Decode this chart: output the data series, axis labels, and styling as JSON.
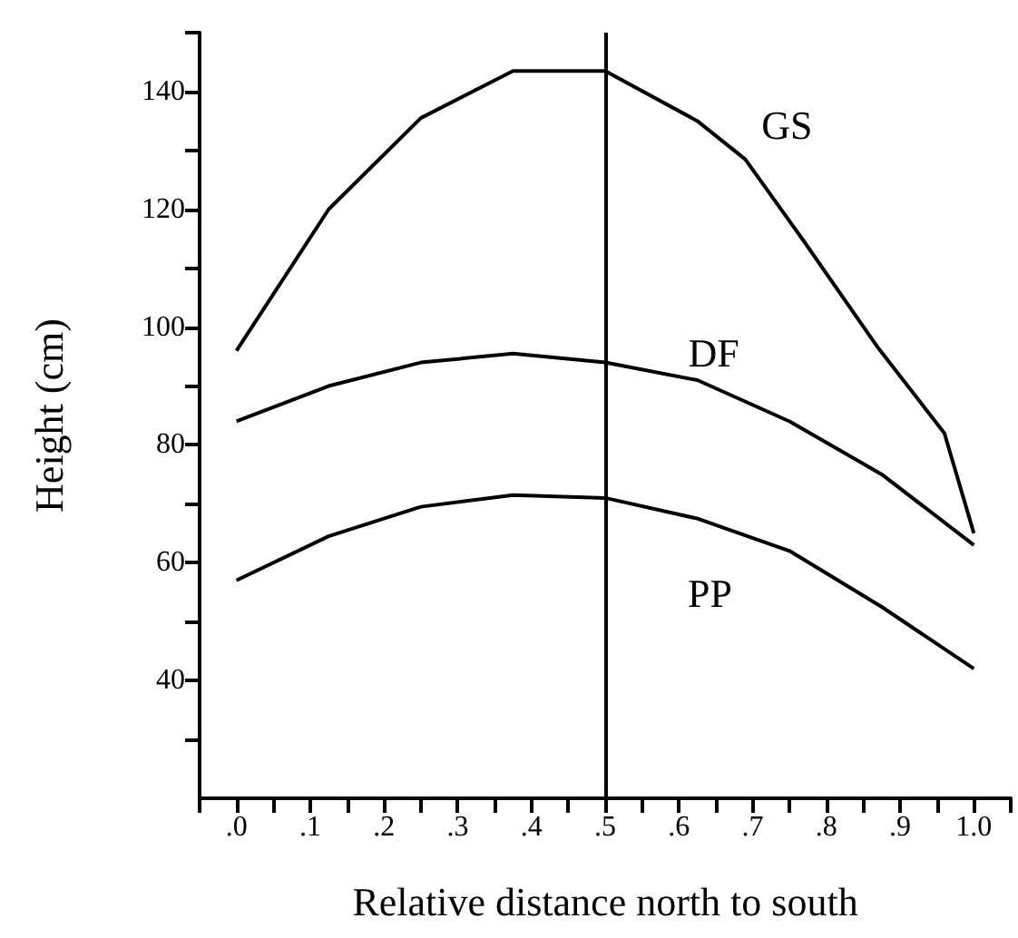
{
  "chart_data": {
    "type": "line",
    "xlabel": "Relative distance north to south",
    "ylabel": "Height (cm)",
    "xlim": [
      -0.05,
      1.05
    ],
    "xticks": [
      {
        "value": -0.05,
        "label": null
      },
      {
        "value": 0,
        "label": ".0"
      },
      {
        "value": 0.05,
        "label": null
      },
      {
        "value": 0.1,
        "label": ".1"
      },
      {
        "value": 0.15,
        "label": null
      },
      {
        "value": 0.2,
        "label": ".2"
      },
      {
        "value": 0.25,
        "label": null
      },
      {
        "value": 0.3,
        "label": ".3"
      },
      {
        "value": 0.35,
        "label": null
      },
      {
        "value": 0.4,
        "label": ".4"
      },
      {
        "value": 0.45,
        "label": null
      },
      {
        "value": 0.5,
        "label": ".5"
      },
      {
        "value": 0.55,
        "label": null
      },
      {
        "value": 0.6,
        "label": ".6"
      },
      {
        "value": 0.65,
        "label": null
      },
      {
        "value": 0.7,
        "label": ".7"
      },
      {
        "value": 0.75,
        "label": null
      },
      {
        "value": 0.8,
        "label": ".8"
      },
      {
        "value": 0.85,
        "label": null
      },
      {
        "value": 0.9,
        "label": ".9"
      },
      {
        "value": 0.95,
        "label": null
      },
      {
        "value": 1.0,
        "label": "1.0"
      },
      {
        "value": 1.05,
        "label": null
      }
    ],
    "ylim": [
      20,
      150
    ],
    "yticks": [
      {
        "value": 30,
        "label": null
      },
      40,
      {
        "value": 50,
        "label": null
      },
      60,
      {
        "value": 70,
        "label": null
      },
      80,
      {
        "value": 90,
        "label": null
      },
      100,
      {
        "value": 110,
        "label": null
      },
      120,
      {
        "value": 130,
        "label": null
      },
      140,
      {
        "value": 150,
        "label": null
      }
    ],
    "x": [
      0,
      0.125,
      0.25,
      0.375,
      0.5,
      0.625,
      0.75,
      0.875,
      1.0
    ],
    "series": [
      {
        "name": "GS",
        "color": "#000000",
        "x": [
          0,
          0.125,
          0.25,
          0.375,
          0.5,
          0.625,
          0.69,
          0.77,
          0.87,
          0.96,
          1.0
        ],
        "values": [
          96,
          120,
          135.5,
          143.5,
          143.5,
          135,
          128.5,
          114.5,
          96.5,
          82,
          65
        ]
      },
      {
        "name": "DF",
        "color": "#000000",
        "values": [
          84,
          90,
          94,
          95.5,
          94,
          91,
          84,
          75,
          63
        ]
      },
      {
        "name": "PP",
        "color": "#000000",
        "values": [
          57,
          64.5,
          69.5,
          71.5,
          71,
          67.5,
          62,
          52.5,
          42
        ]
      }
    ],
    "ref_lines": [
      {
        "axis": "x",
        "value": 0.5,
        "color": "#000000"
      }
    ],
    "marker": "none",
    "line_style": "solid",
    "grid": false,
    "legend": false
  }
}
